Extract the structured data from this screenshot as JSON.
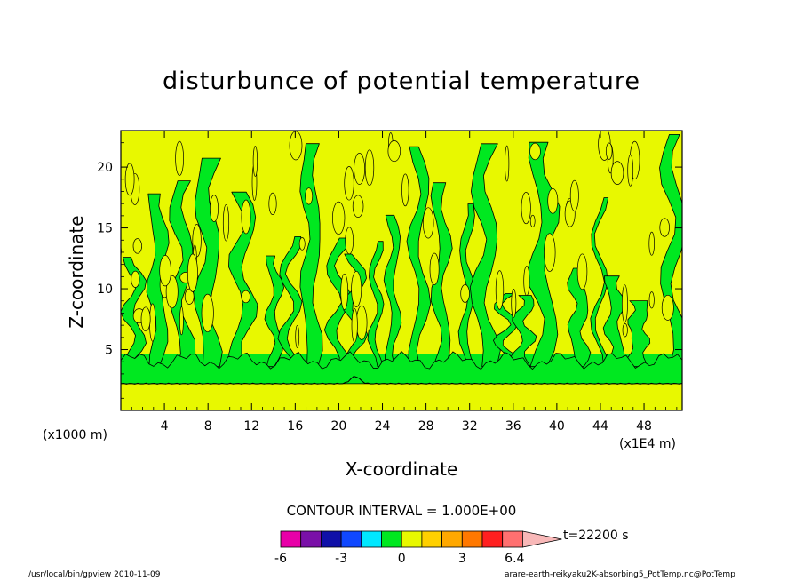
{
  "chart_data": {
    "type": "heatmap",
    "title": "disturbunce of potential temperature",
    "xlabel": "X-coordinate",
    "ylabel": "Z-coordinate",
    "x_unit_left": "(x1000 m)",
    "x_unit_right": "(x1E4 m)",
    "xlim": [
      0,
      51.5
    ],
    "ylim": [
      0,
      23
    ],
    "x_ticks": [
      4,
      8,
      12,
      16,
      20,
      24,
      28,
      32,
      36,
      40,
      44,
      48
    ],
    "y_ticks": [
      5,
      10,
      15,
      20
    ],
    "contour_interval": "CONTOUR INTERVAL = 1.000E+00",
    "time": "t=22200 s",
    "colorbar": {
      "colors": [
        "#e800a8",
        "#7a10a8",
        "#1010a8",
        "#1048ff",
        "#00e8ff",
        "#00e820",
        "#e8f800",
        "#ffd000",
        "#ffa800",
        "#ff7800",
        "#ff2020",
        "#ff7070",
        "#f8b8b8"
      ],
      "tick_labels": [
        "-6",
        "-3",
        "0",
        "3",
        "6.4"
      ]
    },
    "layers": [
      {
        "region": "near-surface band",
        "z_range": [
          0,
          2.2
        ],
        "level": "yellow"
      },
      {
        "region": "low-level band",
        "z_range": [
          2.2,
          4.5
        ],
        "level": "green"
      },
      {
        "region": "upper region",
        "z_range": [
          4.5,
          23
        ],
        "level": "alternating green and yellow vertical streaks"
      }
    ]
  },
  "footer": {
    "left": "/usr/local/bin/gpview  2010-11-09",
    "right": "arare-earth-reikyaku2K-absorbing5_PotTemp.nc@PotTemp"
  }
}
